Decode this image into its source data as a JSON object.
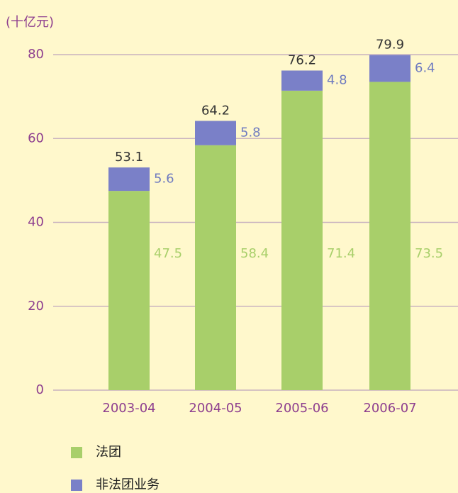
{
  "chart_data": {
    "type": "stacked_bar",
    "y_label": "(十亿元)",
    "categories": [
      "2003-04",
      "2004-05",
      "2005-06",
      "2006-07"
    ],
    "series": [
      {
        "name": "法团",
        "color": "#a8cf6a",
        "values": [
          47.5,
          58.4,
          71.4,
          73.5
        ]
      },
      {
        "name": "非法团业务",
        "color": "#7a80c8",
        "values": [
          5.6,
          5.8,
          4.8,
          6.4
        ]
      }
    ],
    "totals": [
      53.1,
      64.2,
      76.2,
      79.9
    ],
    "ylim": [
      0,
      80
    ],
    "yticks": [
      0,
      20,
      40,
      60,
      80
    ],
    "grid": true,
    "legend": "bottom"
  }
}
